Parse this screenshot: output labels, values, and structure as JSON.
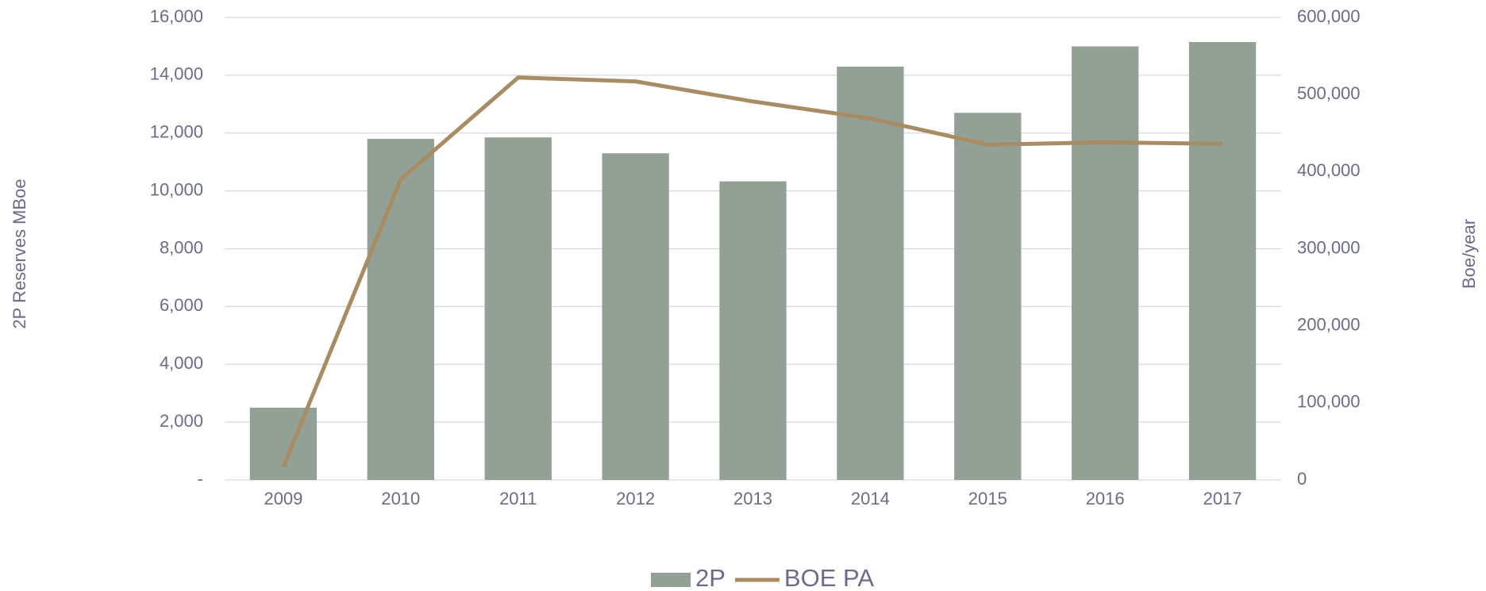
{
  "chart_data": {
    "type": "bar-line",
    "categories": [
      "2009",
      "2010",
      "2011",
      "2012",
      "2013",
      "2014",
      "2015",
      "2016",
      "2017"
    ],
    "series": [
      {
        "name": "2P",
        "type": "bar",
        "color": "#92a096",
        "values": [
          2500,
          11800,
          11850,
          11300,
          10330,
          14300,
          12700,
          15000,
          15150
        ]
      },
      {
        "name": "BOE PA",
        "type": "line",
        "axis": "y2",
        "color": "#a88c64",
        "values": [
          17000,
          390000,
          522000,
          517000,
          491000,
          469000,
          435000,
          438000,
          436000
        ]
      }
    ],
    "y_label": "2P Reserves MBoe",
    "y2_label": "Boe/year",
    "ylim": [
      0,
      16000
    ],
    "yticks": [
      {
        "value": 0,
        "label": "-"
      },
      {
        "value": 2000,
        "label": "2,000"
      },
      {
        "value": 4000,
        "label": "4,000"
      },
      {
        "value": 6000,
        "label": "6,000"
      },
      {
        "value": 8000,
        "label": "8,000"
      },
      {
        "value": 10000,
        "label": "10,000"
      },
      {
        "value": 12000,
        "label": "12,000"
      },
      {
        "value": 14000,
        "label": "14,000"
      },
      {
        "value": 16000,
        "label": "16,000"
      }
    ],
    "y2lim": [
      0,
      600000
    ],
    "y2ticks": [
      0,
      {
        "value": 100000,
        "label": "100,000"
      },
      {
        "value": 200000,
        "label": "200,000"
      },
      {
        "value": 300000,
        "label": "300,000"
      },
      {
        "value": 400000,
        "label": "400,000"
      },
      {
        "value": 500000,
        "label": "500,000"
      },
      {
        "value": 600000,
        "label": "600,000"
      }
    ],
    "grid": true,
    "legend": "bottom"
  }
}
